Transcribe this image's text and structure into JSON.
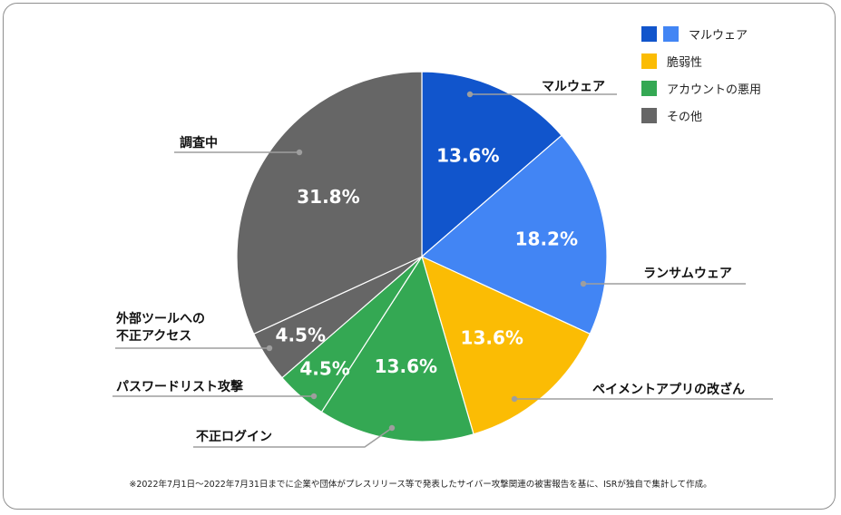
{
  "chart_data": {
    "type": "pie",
    "slices": [
      {
        "label": "マルウェア",
        "value": 13.6,
        "value_label": "13.6%",
        "color": "#1155CC"
      },
      {
        "label": "ランサムウェア",
        "value": 18.2,
        "value_label": "18.2%",
        "color": "#4285F4"
      },
      {
        "label": "ペイメントアプリの改ざん",
        "value": 13.6,
        "value_label": "13.6%",
        "color": "#FBBC04"
      },
      {
        "label": "不正ログイン",
        "value": 13.6,
        "value_label": "13.6%",
        "color": "#34A853"
      },
      {
        "label": "パスワードリスト攻撃",
        "value": 4.5,
        "value_label": "4.5%",
        "color": "#34A853"
      },
      {
        "label": "外部ツールへの\n不正アクセス",
        "value": 4.5,
        "value_label": "4.5%",
        "color": "#666666"
      },
      {
        "label": "調査中",
        "value": 31.8,
        "value_label": "31.8%",
        "color": "#666666"
      }
    ],
    "legend": [
      {
        "label": "マルウェア",
        "colors": [
          "#1155CC",
          "#4285F4"
        ]
      },
      {
        "label": "脆弱性",
        "colors": [
          "#FBBC04"
        ]
      },
      {
        "label": "アカウントの悪用",
        "colors": [
          "#34A853"
        ]
      },
      {
        "label": "その他",
        "colors": [
          "#666666"
        ]
      }
    ],
    "legend_position": "top-right",
    "start": "12 o'clock, clockwise"
  },
  "footnote": "※2022年7月1日～2022年7月31日までに企業や団体がプレスリリース等で発表したサイバー攻撃関連の被害報告を基に、ISRが独自で集計して作成。"
}
